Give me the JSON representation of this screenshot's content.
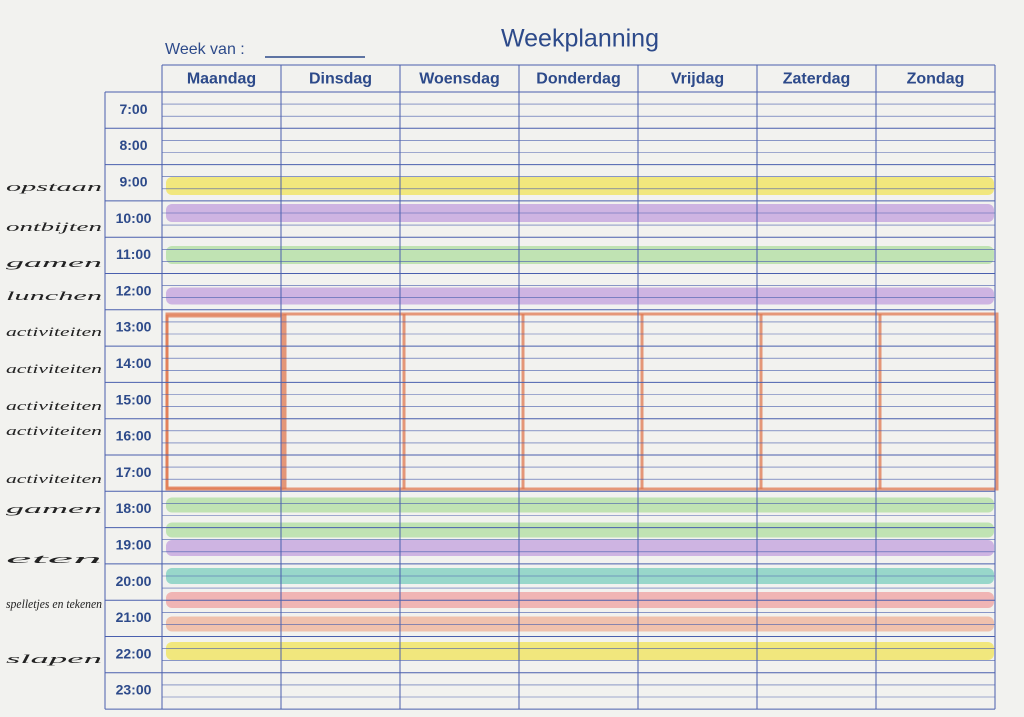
{
  "header": {
    "week_label": "Week van :",
    "title": "Weekplanning"
  },
  "days": [
    "Maandag",
    "Dinsdag",
    "Woensdag",
    "Donderdag",
    "Vrijdag",
    "Zaterdag",
    "Zondag"
  ],
  "times": [
    "7:00",
    "8:00",
    "9:00",
    "10:00",
    "11:00",
    "12:00",
    "13:00",
    "14:00",
    "15:00",
    "16:00",
    "17:00",
    "18:00",
    "19:00",
    "20:00",
    "21:00",
    "22:00",
    "23:00"
  ],
  "notes": [
    "opstaan",
    "ontbijten",
    "gamen",
    "lunchen",
    "activiteiten",
    "activiteiten",
    "activiteiten",
    "activiteiten",
    "activiteiten",
    "gamen",
    "eten",
    "spelletjes en tekenen",
    "slapen"
  ]
}
